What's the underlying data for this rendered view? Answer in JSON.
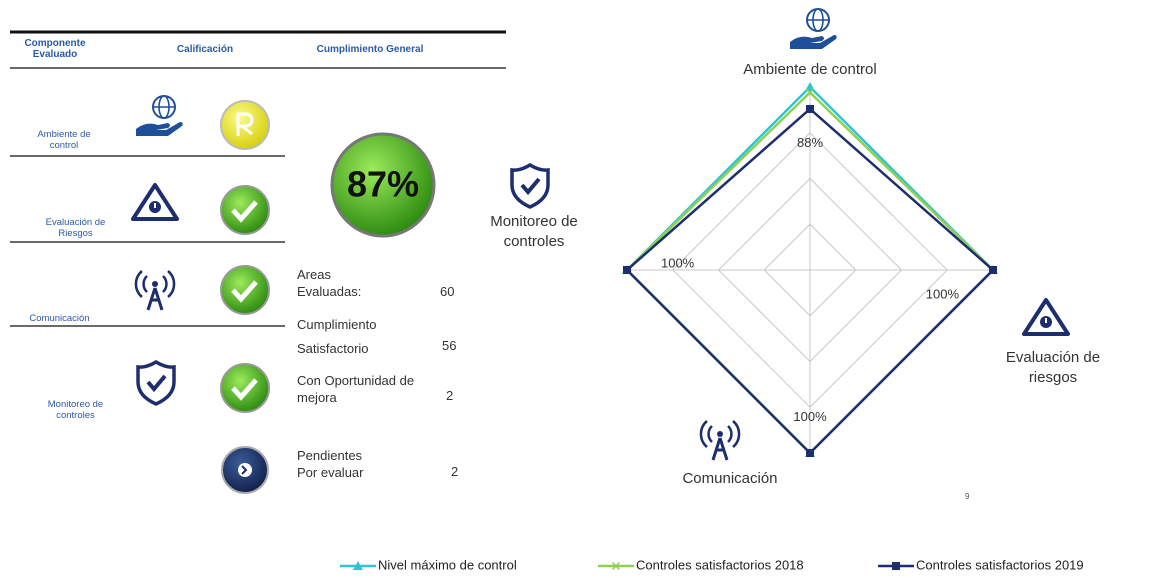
{
  "table": {
    "headers": [
      "Componente Evaluado",
      "Calificación",
      "Cumplimiento General"
    ],
    "rows": [
      "Ambiente de control",
      "Evaluación de Riesgos",
      "Comunicación",
      "Monitoreo de controles"
    ],
    "overall": "87%",
    "stats": [
      {
        "label": "Areas Evaluadas:",
        "value": 60
      },
      {
        "label": "Cumplimiento Satisfactorio",
        "value": 56
      },
      {
        "label": "Con Oportunidad de mejora",
        "value": 2
      },
      {
        "label": "Pendientes Por evaluar",
        "value": 2
      }
    ]
  },
  "page_number": "9",
  "chart_data": {
    "type": "radar",
    "categories": [
      "Ambiente de control",
      "Evaluación de riesgos",
      "Comunicación",
      "Monitoreo de controles"
    ],
    "rlim": [
      0,
      100
    ],
    "rticks": [
      25,
      50,
      75,
      100
    ],
    "grid": true,
    "legend": "bottom",
    "series": [
      {
        "name": "Nivel máximo de control",
        "color": "#2ec4d8",
        "values": [
          100,
          100,
          100,
          100
        ]
      },
      {
        "name": "Controles satisfactorios 2018",
        "color": "#8fd14f",
        "values": [
          97,
          100,
          100,
          100
        ]
      },
      {
        "name": "Controles satisfactorios 2019",
        "color": "#1d2e6e",
        "values": [
          88,
          100,
          100,
          100
        ],
        "value_labels": [
          "88%",
          "100%",
          "100%",
          "100%"
        ]
      }
    ]
  }
}
